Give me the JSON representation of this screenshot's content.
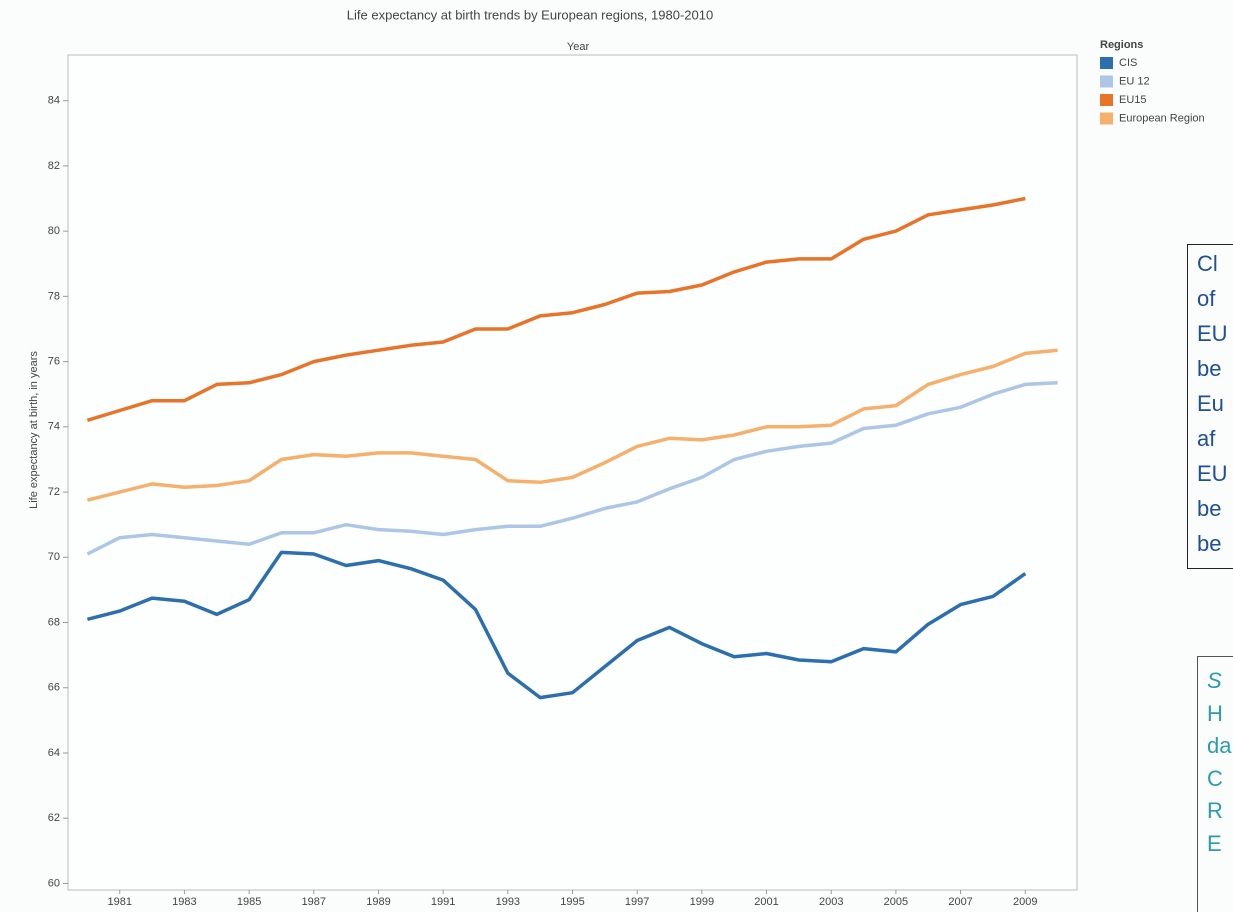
{
  "chart_data": {
    "type": "line",
    "title": "Life expectancy at birth trends by European regions, 1980-2010",
    "x_label": "Year",
    "y_label": "Life expectancy at birth, in years",
    "legend_title": "Regions",
    "x": [
      1980,
      1981,
      1982,
      1983,
      1984,
      1985,
      1986,
      1987,
      1988,
      1989,
      1990,
      1991,
      1992,
      1993,
      1994,
      1995,
      1996,
      1997,
      1998,
      1999,
      2000,
      2001,
      2002,
      2003,
      2004,
      2005,
      2006,
      2007,
      2008,
      2009,
      2010
    ],
    "xlim": [
      1979.4,
      2010.6
    ],
    "xticks": [
      1981,
      1983,
      1985,
      1987,
      1989,
      1991,
      1993,
      1995,
      1997,
      1999,
      2001,
      2003,
      2005,
      2007,
      2009
    ],
    "ylim": [
      59.8,
      85.4
    ],
    "yticks": [
      60,
      62,
      64,
      66,
      68,
      70,
      72,
      74,
      76,
      78,
      80,
      82,
      84
    ],
    "series": [
      {
        "name": "CIS",
        "color": "#2b6fae",
        "values": [
          68.1,
          68.35,
          68.75,
          68.65,
          68.25,
          68.7,
          70.15,
          70.1,
          69.75,
          69.9,
          69.65,
          69.3,
          68.4,
          66.45,
          65.7,
          65.85,
          66.65,
          67.45,
          67.85,
          67.35,
          66.95,
          67.05,
          66.85,
          66.8,
          67.2,
          67.1,
          67.95,
          68.55,
          68.8,
          69.5,
          null
        ]
      },
      {
        "name": "EU 12",
        "color": "#aec6e6",
        "values": [
          70.1,
          70.6,
          70.7,
          70.6,
          70.5,
          70.4,
          70.75,
          70.75,
          71.0,
          70.85,
          70.8,
          70.7,
          70.85,
          70.95,
          70.95,
          71.2,
          71.5,
          71.7,
          72.1,
          72.45,
          73.0,
          73.25,
          73.4,
          73.5,
          73.95,
          74.05,
          74.4,
          74.6,
          75.0,
          75.3,
          75.35
        ]
      },
      {
        "name": "EU15",
        "color": "#e8742a",
        "values": [
          74.2,
          74.5,
          74.8,
          74.8,
          75.3,
          75.35,
          75.6,
          76.0,
          76.2,
          76.35,
          76.5,
          76.6,
          77.0,
          77.0,
          77.4,
          77.5,
          77.75,
          78.1,
          78.15,
          78.35,
          78.75,
          79.05,
          79.15,
          79.15,
          79.75,
          80.0,
          80.5,
          80.65,
          80.8,
          81.0,
          null
        ]
      },
      {
        "name": "European Region",
        "color": "#f5b06b",
        "values": [
          71.75,
          72.0,
          72.25,
          72.15,
          72.2,
          72.35,
          73.0,
          73.15,
          73.1,
          73.2,
          73.2,
          73.1,
          73.0,
          72.35,
          72.3,
          72.45,
          72.9,
          73.4,
          73.65,
          73.6,
          73.75,
          74.0,
          74.0,
          74.05,
          74.55,
          74.65,
          75.3,
          75.6,
          75.85,
          76.25,
          76.35
        ]
      }
    ],
    "annotations": [
      {
        "lines": [
          "Cl",
          "of",
          "EU",
          "be",
          "Eu",
          "af",
          "EU",
          "be",
          "be"
        ]
      },
      {
        "lines": [
          "S",
          "H",
          "da",
          "C",
          "R",
          "E"
        ]
      }
    ]
  }
}
